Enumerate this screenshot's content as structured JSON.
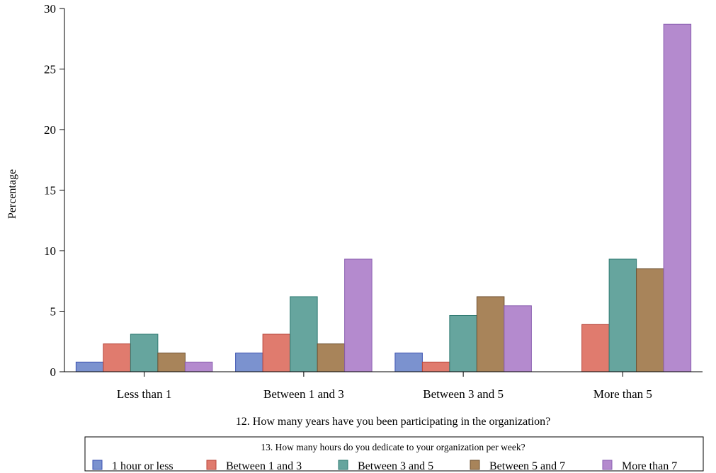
{
  "chart_data": {
    "type": "bar",
    "title": "",
    "xlabel": "12. How many years have you been participating in the organization?",
    "ylabel": "Percentage",
    "categories": [
      "Less than 1",
      "Between 1 and 3",
      "Between 3 and 5",
      "More than 5"
    ],
    "ylim": [
      0,
      30
    ],
    "yticks": [
      0,
      5,
      10,
      15,
      20,
      25,
      30
    ],
    "grid": false,
    "legend": {
      "title": "13. How many hours do you dedicate to your organization per week?",
      "position": "bottom"
    },
    "series": [
      {
        "name": "1 hour or less",
        "color": "#7b92cf",
        "border": "#3a50b0",
        "values": [
          0.8,
          1.55,
          1.55,
          0
        ]
      },
      {
        "name": "Between 1 and 3",
        "color": "#e07b6e",
        "border": "#b8453a",
        "values": [
          2.3,
          3.1,
          0.8,
          3.9
        ]
      },
      {
        "name": "Between 3 and 5",
        "color": "#66a59e",
        "border": "#2f7a72",
        "values": [
          3.1,
          6.2,
          4.65,
          9.3
        ]
      },
      {
        "name": "Between 5 and 7",
        "color": "#a8845a",
        "border": "#6e5030",
        "values": [
          1.55,
          2.3,
          6.2,
          8.5
        ]
      },
      {
        "name": "More than 7",
        "color": "#b48ace",
        "border": "#8a5fb0",
        "values": [
          0.8,
          9.3,
          5.45,
          28.7
        ]
      }
    ]
  }
}
